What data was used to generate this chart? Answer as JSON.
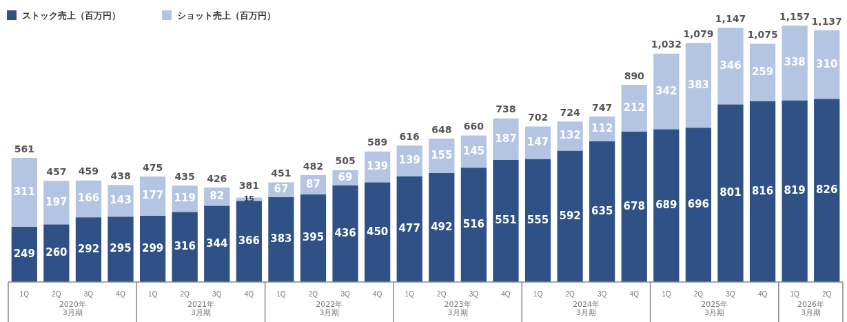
{
  "chart_data": {
    "type": "bar",
    "stacked": true,
    "data_labels": true,
    "legend": "top left",
    "categories": [
      "1Q",
      "2Q",
      "3Q",
      "4Q",
      "1Q",
      "2Q",
      "3Q",
      "4Q",
      "1Q",
      "2Q",
      "3Q",
      "4Q",
      "1Q",
      "2Q",
      "3Q",
      "4Q",
      "1Q",
      "2Q",
      "3Q",
      "4Q",
      "1Q",
      "2Q",
      "3Q",
      "4Q",
      "1Q",
      "2Q"
    ],
    "series": [
      {
        "name": "ストック売上（百万円）",
        "color": "#2f5185",
        "values": [
          249,
          260,
          292,
          295,
          299,
          316,
          344,
          366,
          383,
          395,
          436,
          450,
          477,
          492,
          516,
          551,
          555,
          592,
          635,
          678,
          689,
          696,
          801,
          816,
          819,
          826
        ]
      },
      {
        "name": "ショット売上（百万円）",
        "color": "#b4c5e4",
        "values": [
          311,
          197,
          166,
          143,
          177,
          119,
          82,
          15,
          67,
          87,
          69,
          139,
          139,
          155,
          145,
          187,
          147,
          132,
          112,
          212,
          342,
          383,
          346,
          259,
          338,
          310
        ]
      }
    ],
    "totals": [
      "561",
      "457",
      "459",
      "438",
      "475",
      "435",
      "426",
      "381",
      "451",
      "482",
      "505",
      "589",
      "616",
      "648",
      "660",
      "738",
      "702",
      "724",
      "747",
      "890",
      "1,032",
      "1,079",
      "1,147",
      "1,075",
      "1,157",
      "1,137"
    ],
    "annotations": [
      "2020年\n3月期",
      "2021年\n3月期",
      "2022年\n3月期",
      "2023年\n3月期",
      "2024年\n3月期",
      "2025年\n3月期",
      "2026年\n3月期"
    ]
  }
}
